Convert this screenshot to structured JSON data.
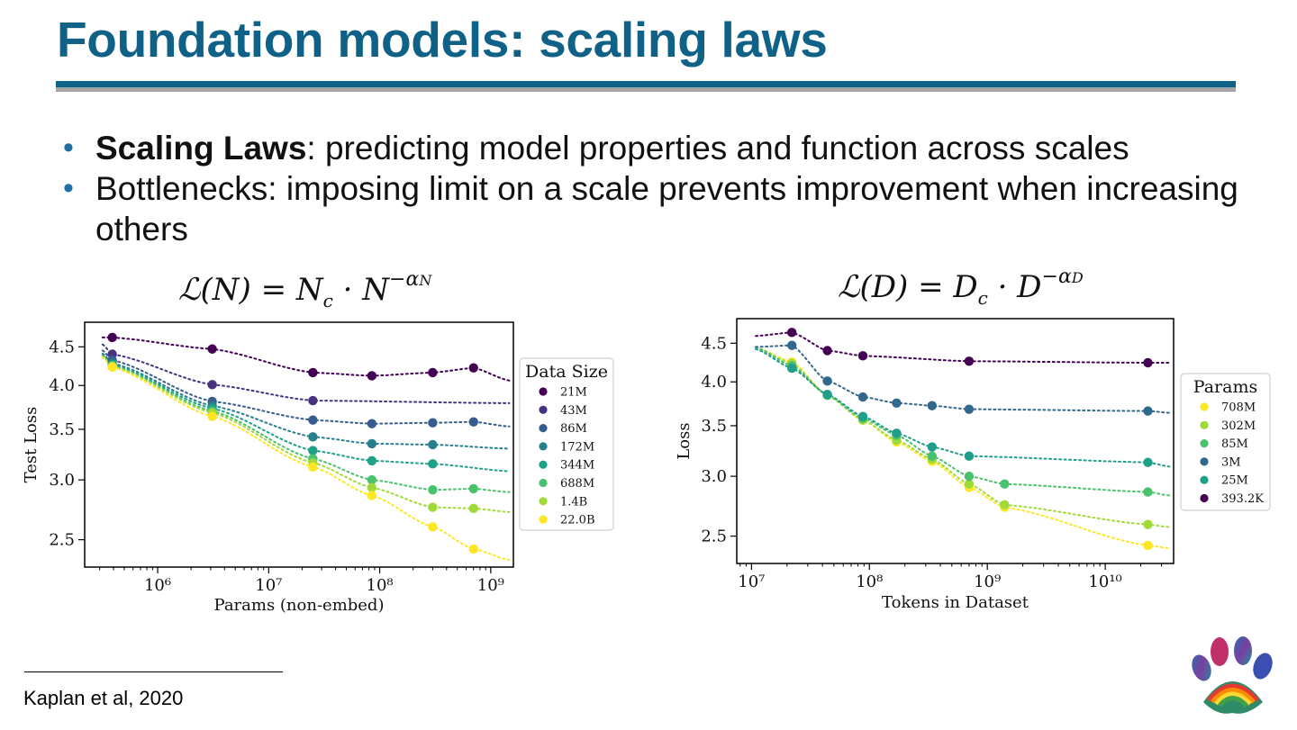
{
  "slide": {
    "title": "Foundation models: scaling laws",
    "bullets": [
      {
        "bold": "Scaling Laws",
        "text": ": predicting model properties and function across scales"
      },
      {
        "bold": "",
        "text": "Bottlenecks: imposing limit on a scale prevents improvement when increasing others"
      }
    ],
    "formula_left": {
      "lhs": "ℒ(N) = N",
      "sub": "c",
      "mid": " · N",
      "sup": "−α",
      "supsub": "N"
    },
    "formula_right": {
      "lhs": "ℒ(D) = D",
      "sub": "c",
      "mid": " · D",
      "sup": "−α",
      "supsub": "D"
    },
    "footnote": "Kaplan et al, 2020",
    "logo_icon": "rainbow-paw-print-icon",
    "colors": {
      "title": "#0f6188",
      "rule": "#0f6188",
      "rule_shadow": "#a6a6a6",
      "bullet": "#1f6fa6"
    }
  },
  "chart_data": [
    {
      "type": "scatter",
      "xlabel": "Params (non-embed)",
      "ylabel": "Test Loss",
      "x_scale": "log",
      "y_scale": "log",
      "xlim": [
        220000.0,
        1600000000.0
      ],
      "ylim": [
        2.3,
        4.85
      ],
      "xticks": [
        1000000.0,
        10000000.0,
        100000000.0,
        1000000000.0
      ],
      "xtick_labels": [
        "10⁶",
        "10⁷",
        "10⁸",
        "10⁹"
      ],
      "yticks": [
        2.5,
        3.0,
        3.5,
        4.0,
        4.5
      ],
      "ytick_labels": [
        "2.5",
        "3.0",
        "3.5",
        "4.0",
        "4.5"
      ],
      "legend_title": "Data Size",
      "legend_position": "right-outside",
      "fit": "dotted power-law fit per series",
      "x": [
        390000.0,
        3100000.0,
        25000000.0,
        85000000.0,
        300000000.0,
        700000000.0
      ],
      "series": [
        {
          "name": "21M",
          "color": "#440154",
          "values": [
            4.63,
            4.47,
            4.16,
            4.12,
            4.16,
            4.22
          ],
          "fit_end": 4.06
        },
        {
          "name": "43M",
          "color": "#46327e",
          "values": [
            4.4,
            4.01,
            3.82,
            null,
            null,
            null
          ],
          "fit_end": 3.79
        },
        {
          "name": "86M",
          "color": "#365c8d",
          "values": [
            4.32,
            3.81,
            3.6,
            3.56,
            3.57,
            3.58
          ],
          "fit_end": 3.53
        },
        {
          "name": "172M",
          "color": "#277f8e",
          "values": [
            4.28,
            3.76,
            3.42,
            3.35,
            3.34,
            null
          ],
          "fit_end": 3.3
        },
        {
          "name": "344M",
          "color": "#1fa187",
          "values": [
            4.26,
            3.73,
            3.28,
            3.18,
            3.15,
            null
          ],
          "fit_end": 3.08
        },
        {
          "name": "688M",
          "color": "#4ac16d",
          "values": [
            4.25,
            3.7,
            3.2,
            3.0,
            2.91,
            2.92
          ],
          "fit_end": 2.89
        },
        {
          "name": "1.4B",
          "color": "#a0da39",
          "values": [
            4.24,
            3.68,
            3.16,
            2.93,
            2.76,
            2.75
          ],
          "fit_end": 2.72
        },
        {
          "name": "22.0B",
          "color": "#fde725",
          "values": [
            4.23,
            3.64,
            3.12,
            2.86,
            2.6,
            2.43
          ],
          "fit_end": 2.35
        }
      ]
    },
    {
      "type": "scatter",
      "xlabel": "Tokens in Dataset",
      "ylabel": "Loss",
      "x_scale": "log",
      "y_scale": "log",
      "xlim": [
        7500000.0,
        38000000000.0
      ],
      "ylim": [
        2.3,
        4.85
      ],
      "xticks": [
        10000000.0,
        100000000.0,
        1000000000.0,
        10000000000.0
      ],
      "xtick_labels": [
        "10⁷",
        "10⁸",
        "10⁹",
        "10¹⁰"
      ],
      "yticks": [
        2.5,
        3.0,
        3.5,
        4.0,
        4.5
      ],
      "ytick_labels": [
        "2.5",
        "3.0",
        "3.5",
        "4.0",
        "4.5"
      ],
      "legend_title": "Params",
      "legend_position": "right-outside",
      "fit": "dotted power-law fit per series",
      "x": [
        22000000.0,
        44000000.0,
        88000000.0,
        170000000.0,
        340000000.0,
        700000000.0,
        1400000000.0,
        23000000000.0
      ],
      "series": [
        {
          "name": "708M",
          "color": "#fde725",
          "values": [
            4.25,
            3.84,
            3.56,
            3.33,
            3.14,
            2.9,
            2.73,
            2.43
          ],
          "fit_start": 4.44,
          "fit_end": 2.41
        },
        {
          "name": "302M",
          "color": "#a0da39",
          "values": [
            4.23,
            3.84,
            3.56,
            3.35,
            3.16,
            2.93,
            2.75,
            2.59
          ],
          "fit_start": 4.44,
          "fit_end": 2.57
        },
        {
          "name": "85M",
          "color": "#4ac16d",
          "values": [
            4.2,
            3.84,
            3.58,
            3.4,
            3.19,
            3.0,
            2.93,
            2.86
          ],
          "fit_start": 4.44,
          "fit_end": 2.83
        },
        {
          "name": "3M",
          "color": "#31688e",
          "values": [
            4.47,
            4.01,
            3.82,
            3.75,
            3.72,
            3.68,
            null,
            3.66
          ],
          "fit_start": 4.45,
          "fit_end": 3.64
        },
        {
          "name": "25M",
          "color": "#1f9e89",
          "values": [
            4.17,
            3.85,
            3.6,
            3.42,
            3.28,
            3.19,
            null,
            3.13
          ],
          "fit_start": 4.42,
          "fit_end": 3.09
        },
        {
          "name": "393.2K",
          "color": "#440154",
          "values": [
            4.65,
            4.4,
            4.33,
            null,
            null,
            4.26,
            null,
            4.24
          ],
          "fit_start": 4.6,
          "fit_end": 4.24
        }
      ]
    }
  ]
}
